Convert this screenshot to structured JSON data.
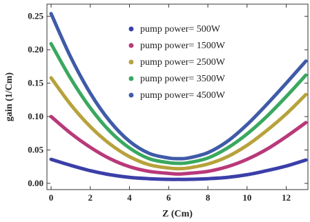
{
  "chart_data": {
    "type": "line",
    "xlabel": "Z (Cm)",
    "ylabel": "gain (1/Cm)",
    "xlim": [
      0,
      13
    ],
    "ylim": [
      0,
      0.26
    ],
    "xticks": [
      0,
      2,
      4,
      6,
      8,
      10,
      12
    ],
    "yticks": [
      0.0,
      0.05,
      0.1,
      0.15,
      0.2,
      0.25
    ],
    "ytick_labels": [
      "0.00",
      "0.05",
      "0.10",
      "0.15",
      "0.20",
      "0.25"
    ],
    "legend_position": "top-center",
    "x": [
      0,
      1,
      2,
      3,
      4,
      5,
      6,
      6.5,
      7,
      8,
      9,
      10,
      11,
      12,
      13
    ],
    "series": [
      {
        "name": "pump power= 500W",
        "color": "#3b3fa8",
        "values": [
          0.036,
          0.027,
          0.019,
          0.013,
          0.009,
          0.007,
          0.006,
          0.006,
          0.006,
          0.007,
          0.009,
          0.013,
          0.019,
          0.026,
          0.035
        ]
      },
      {
        "name": "pump power= 1500W",
        "color": "#b8397a",
        "values": [
          0.1,
          0.075,
          0.054,
          0.037,
          0.025,
          0.018,
          0.015,
          0.014,
          0.015,
          0.018,
          0.025,
          0.036,
          0.051,
          0.07,
          0.091
        ]
      },
      {
        "name": "pump power= 2500W",
        "color": "#b7a23c",
        "values": [
          0.158,
          0.118,
          0.085,
          0.059,
          0.04,
          0.028,
          0.023,
          0.022,
          0.023,
          0.029,
          0.04,
          0.057,
          0.079,
          0.104,
          0.133
        ]
      },
      {
        "name": "pump power= 3500W",
        "color": "#3aa860",
        "values": [
          0.209,
          0.157,
          0.113,
          0.078,
          0.053,
          0.037,
          0.031,
          0.03,
          0.031,
          0.038,
          0.053,
          0.074,
          0.1,
          0.13,
          0.162
        ]
      },
      {
        "name": "pump power= 4500W",
        "color": "#3f5ba8",
        "values": [
          0.254,
          0.189,
          0.135,
          0.093,
          0.063,
          0.045,
          0.038,
          0.037,
          0.038,
          0.046,
          0.063,
          0.088,
          0.118,
          0.15,
          0.183
        ]
      }
    ]
  }
}
